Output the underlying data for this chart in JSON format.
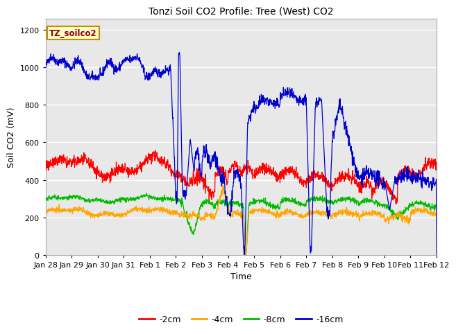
{
  "title": "Tonzi Soil CO2 Profile: Tree (West) CO2",
  "ylabel": "Soil CO2 (mV)",
  "xlabel": "Time",
  "ylim": [
    0,
    1260
  ],
  "yticks": [
    0,
    200,
    400,
    600,
    800,
    1000,
    1200
  ],
  "legend_label": "TZ_soilco2",
  "legend_entries": [
    "-2cm",
    "-4cm",
    "-8cm",
    "-16cm"
  ],
  "colors": {
    "-2cm": "#ff0000",
    "-4cm": "#ffa500",
    "-8cm": "#00bb00",
    "-16cm": "#0000cc"
  },
  "bg_color": "#e8e8e8",
  "fig_bg_color": "#ffffff",
  "tick_labels": [
    "Jan 28",
    "Jan 29",
    "Jan 30",
    "Jan 31",
    "Feb 1",
    "Feb 2",
    "Feb 3",
    "Feb 4",
    "Feb 5",
    "Feb 6",
    "Feb 7",
    "Feb 8",
    "Feb 9",
    "Feb 10",
    "Feb 11",
    "Feb 12"
  ],
  "title_fontsize": 10,
  "axis_fontsize": 9,
  "tick_fontsize": 8
}
